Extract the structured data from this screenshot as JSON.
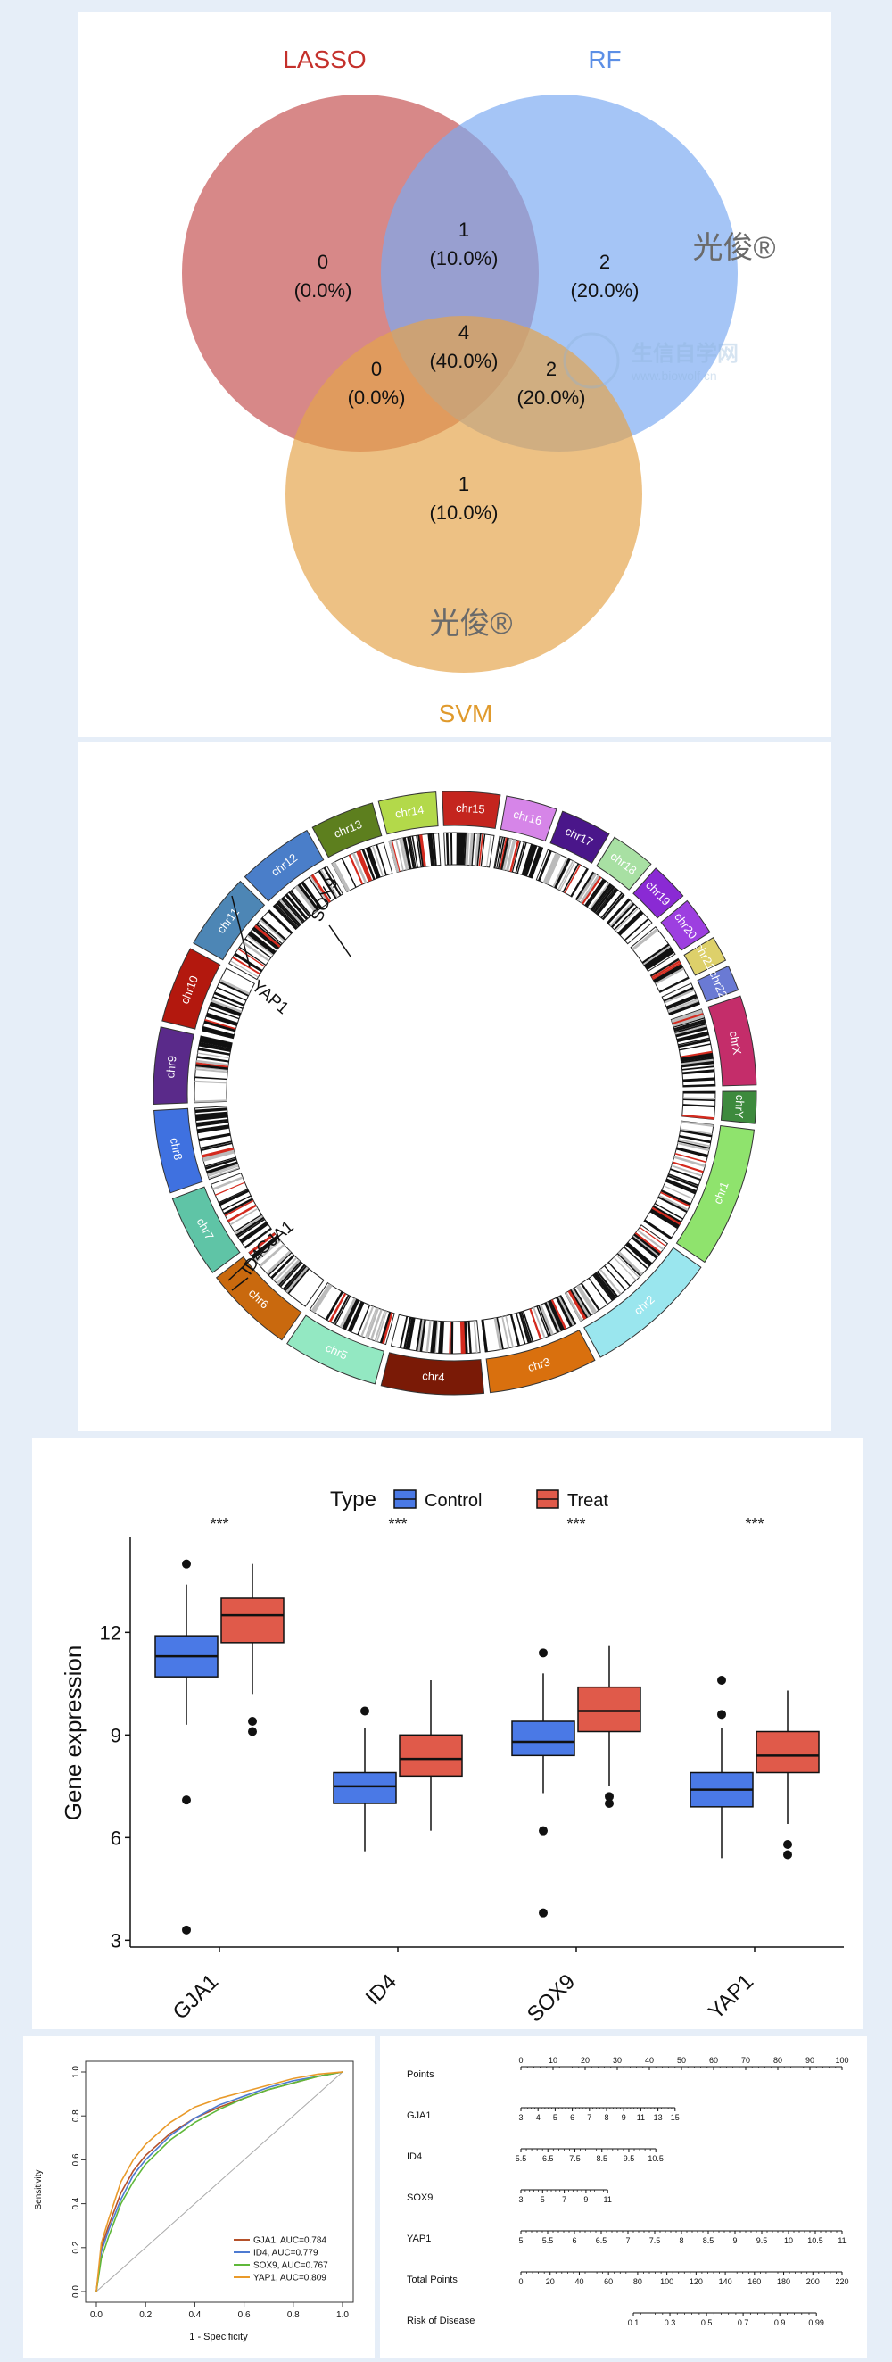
{
  "venn": {
    "sets": [
      {
        "label": "LASSO",
        "color": "#c44f4f"
      },
      {
        "label": "RF",
        "color": "#7aaaf2"
      },
      {
        "label": "SVM",
        "color": "#e4a34a"
      }
    ],
    "regions": {
      "lasso_only": {
        "count": "0",
        "pct": "(0.0%)"
      },
      "rf_only": {
        "count": "2",
        "pct": "(20.0%)"
      },
      "svm_only": {
        "count": "1",
        "pct": "(10.0%)"
      },
      "lasso_rf": {
        "count": "1",
        "pct": "(10.0%)"
      },
      "lasso_svm": {
        "count": "0",
        "pct": "(0.0%)"
      },
      "rf_svm": {
        "count": "2",
        "pct": "(20.0%)"
      },
      "all": {
        "count": "4",
        "pct": "(40.0%)"
      }
    },
    "watermark": "光俊®",
    "watermark_site": "生信自学网",
    "watermark_url": "www.biowolf.cn"
  },
  "circos": {
    "chromosomes": [
      {
        "name": "chr1",
        "color": "#8fe36d"
      },
      {
        "name": "chr2",
        "color": "#9ae6ee"
      },
      {
        "name": "chr3",
        "color": "#d9700e"
      },
      {
        "name": "chr4",
        "color": "#7a1a06"
      },
      {
        "name": "chr5",
        "color": "#93e8c2"
      },
      {
        "name": "chr6",
        "color": "#c9690e"
      },
      {
        "name": "chr7",
        "color": "#5fc4a6"
      },
      {
        "name": "chr8",
        "color": "#3f71e0"
      },
      {
        "name": "chr9",
        "color": "#5a2a8a"
      },
      {
        "name": "chr10",
        "color": "#b3180e"
      },
      {
        "name": "chr11",
        "color": "#4d86b5"
      },
      {
        "name": "chr12",
        "color": "#4a7ec9"
      },
      {
        "name": "chr13",
        "color": "#5d7f1e"
      },
      {
        "name": "chr14",
        "color": "#b3d94a"
      },
      {
        "name": "chr15",
        "color": "#c4251e"
      },
      {
        "name": "chr16",
        "color": "#d685e8"
      },
      {
        "name": "chr17",
        "color": "#4a168a"
      },
      {
        "name": "chr18",
        "color": "#a8e0a3"
      },
      {
        "name": "chr19",
        "color": "#8a2ad4"
      },
      {
        "name": "chr20",
        "color": "#9d3fe0"
      },
      {
        "name": "chr21",
        "color": "#ddd06a"
      },
      {
        "name": "chr22",
        "color": "#6a7ad4"
      },
      {
        "name": "chrX",
        "color": "#c42d6a"
      },
      {
        "name": "chrY",
        "color": "#3d8a3d"
      }
    ],
    "genes": [
      "YAP1",
      "SOX9",
      "GJA1",
      "ID4"
    ]
  },
  "chart_data": [
    {
      "type": "box",
      "title": "",
      "legend_title": "Type",
      "series": [
        {
          "name": "Control",
          "color": "#4a79e6"
        },
        {
          "name": "Treat",
          "color": "#e05a4a"
        }
      ],
      "categories": [
        "GJA1",
        "ID4",
        "SOX9",
        "YAP1"
      ],
      "significance": [
        "***",
        "***",
        "***",
        "***"
      ],
      "ylabel": "Gene expression",
      "yticks": [
        "3",
        "6",
        "9",
        "12"
      ],
      "ylim": [
        2.8,
        14.8
      ],
      "boxes": [
        {
          "gene": "GJA1",
          "group": "Control",
          "min": 9.3,
          "q1": 10.7,
          "median": 11.3,
          "q3": 11.9,
          "max": 13.4,
          "outliers": [
            14.0,
            7.1,
            3.3
          ]
        },
        {
          "gene": "GJA1",
          "group": "Treat",
          "min": 10.2,
          "q1": 11.7,
          "median": 12.5,
          "q3": 13.0,
          "max": 14.0,
          "outliers": [
            9.4,
            9.1
          ]
        },
        {
          "gene": "ID4",
          "group": "Control",
          "min": 5.6,
          "q1": 7.0,
          "median": 7.5,
          "q3": 7.9,
          "max": 9.2,
          "outliers": [
            9.7
          ]
        },
        {
          "gene": "ID4",
          "group": "Treat",
          "min": 6.2,
          "q1": 7.8,
          "median": 8.3,
          "q3": 9.0,
          "max": 10.6,
          "outliers": []
        },
        {
          "gene": "SOX9",
          "group": "Control",
          "min": 7.3,
          "q1": 8.4,
          "median": 8.8,
          "q3": 9.4,
          "max": 10.8,
          "outliers": [
            11.4,
            6.2,
            3.8
          ]
        },
        {
          "gene": "SOX9",
          "group": "Treat",
          "min": 7.5,
          "q1": 9.1,
          "median": 9.7,
          "q3": 10.4,
          "max": 11.6,
          "outliers": [
            7.2,
            7.0
          ]
        },
        {
          "gene": "YAP1",
          "group": "Control",
          "min": 5.4,
          "q1": 6.9,
          "median": 7.4,
          "q3": 7.9,
          "max": 9.2,
          "outliers": [
            10.6,
            9.6
          ]
        },
        {
          "gene": "YAP1",
          "group": "Treat",
          "min": 6.4,
          "q1": 7.9,
          "median": 8.4,
          "q3": 9.1,
          "max": 10.3,
          "outliers": [
            5.8,
            5.5
          ]
        }
      ]
    },
    {
      "type": "line",
      "xlabel": "1 - Specificity",
      "ylabel": "Sensitivity",
      "xticks": [
        "0.0",
        "0.2",
        "0.4",
        "0.6",
        "0.8",
        "1.0"
      ],
      "yticks": [
        "0.0",
        "0.2",
        "0.4",
        "0.6",
        "0.8",
        "1.0"
      ],
      "xlim": [
        0,
        1
      ],
      "ylim": [
        0,
        1
      ],
      "series": [
        {
          "name": "GJA1, AUC=0.784",
          "color": "#b5512a",
          "x": [
            0,
            0.02,
            0.05,
            0.1,
            0.15,
            0.2,
            0.3,
            0.4,
            0.5,
            0.6,
            0.7,
            0.8,
            0.9,
            1.0
          ],
          "y": [
            0,
            0.2,
            0.3,
            0.45,
            0.55,
            0.62,
            0.72,
            0.79,
            0.84,
            0.88,
            0.92,
            0.95,
            0.98,
            1.0
          ]
        },
        {
          "name": "ID4, AUC=0.779",
          "color": "#4d7ad1",
          "x": [
            0,
            0.02,
            0.05,
            0.1,
            0.15,
            0.2,
            0.3,
            0.4,
            0.5,
            0.6,
            0.7,
            0.8,
            0.9,
            1.0
          ],
          "y": [
            0,
            0.18,
            0.28,
            0.42,
            0.53,
            0.6,
            0.71,
            0.79,
            0.85,
            0.89,
            0.93,
            0.96,
            0.98,
            1.0
          ]
        },
        {
          "name": "SOX9, AUC=0.767",
          "color": "#5fb83a",
          "x": [
            0,
            0.02,
            0.05,
            0.1,
            0.15,
            0.2,
            0.3,
            0.4,
            0.5,
            0.6,
            0.7,
            0.8,
            0.9,
            1.0
          ],
          "y": [
            0,
            0.15,
            0.25,
            0.4,
            0.5,
            0.58,
            0.69,
            0.77,
            0.83,
            0.88,
            0.92,
            0.95,
            0.98,
            1.0
          ]
        },
        {
          "name": "YAP1, AUC=0.809",
          "color": "#e99a2a",
          "x": [
            0,
            0.02,
            0.05,
            0.1,
            0.15,
            0.2,
            0.3,
            0.4,
            0.5,
            0.6,
            0.7,
            0.8,
            0.9,
            1.0
          ],
          "y": [
            0,
            0.22,
            0.33,
            0.5,
            0.6,
            0.67,
            0.77,
            0.84,
            0.88,
            0.91,
            0.94,
            0.97,
            0.99,
            1.0
          ]
        }
      ]
    },
    {
      "type": "nomogram",
      "rows": [
        {
          "label": "Points",
          "ticks": [
            "0",
            "10",
            "20",
            "30",
            "40",
            "50",
            "60",
            "70",
            "80",
            "90",
            "100"
          ],
          "start": 0,
          "end": 1
        },
        {
          "label": "GJA1",
          "ticks": [
            "3",
            "4",
            "5",
            "6",
            "7",
            "8",
            "9",
            "11",
            "13",
            "15"
          ],
          "start": 0,
          "end": 0.48
        },
        {
          "label": "ID4",
          "ticks": [
            "5.5",
            "6.5",
            "7.5",
            "8.5",
            "9.5",
            "10.5"
          ],
          "start": 0,
          "end": 0.42
        },
        {
          "label": "SOX9",
          "ticks": [
            "3",
            "5",
            "7",
            "9",
            "11"
          ],
          "start": 0,
          "end": 0.27
        },
        {
          "label": "YAP1",
          "ticks": [
            "5",
            "5.5",
            "6",
            "6.5",
            "7",
            "7.5",
            "8",
            "8.5",
            "9",
            "9.5",
            "10",
            "10.5",
            "11"
          ],
          "start": 0,
          "end": 1
        },
        {
          "label": "Total Points",
          "ticks": [
            "0",
            "20",
            "40",
            "60",
            "80",
            "100",
            "120",
            "140",
            "160",
            "180",
            "200",
            "220"
          ],
          "start": 0,
          "end": 1
        },
        {
          "label": "Risk of Disease",
          "ticks": [
            "0.1",
            "0.3",
            "0.5",
            "0.7",
            "0.9",
            "0.99"
          ],
          "start": 0.35,
          "end": 0.92
        }
      ]
    }
  ]
}
